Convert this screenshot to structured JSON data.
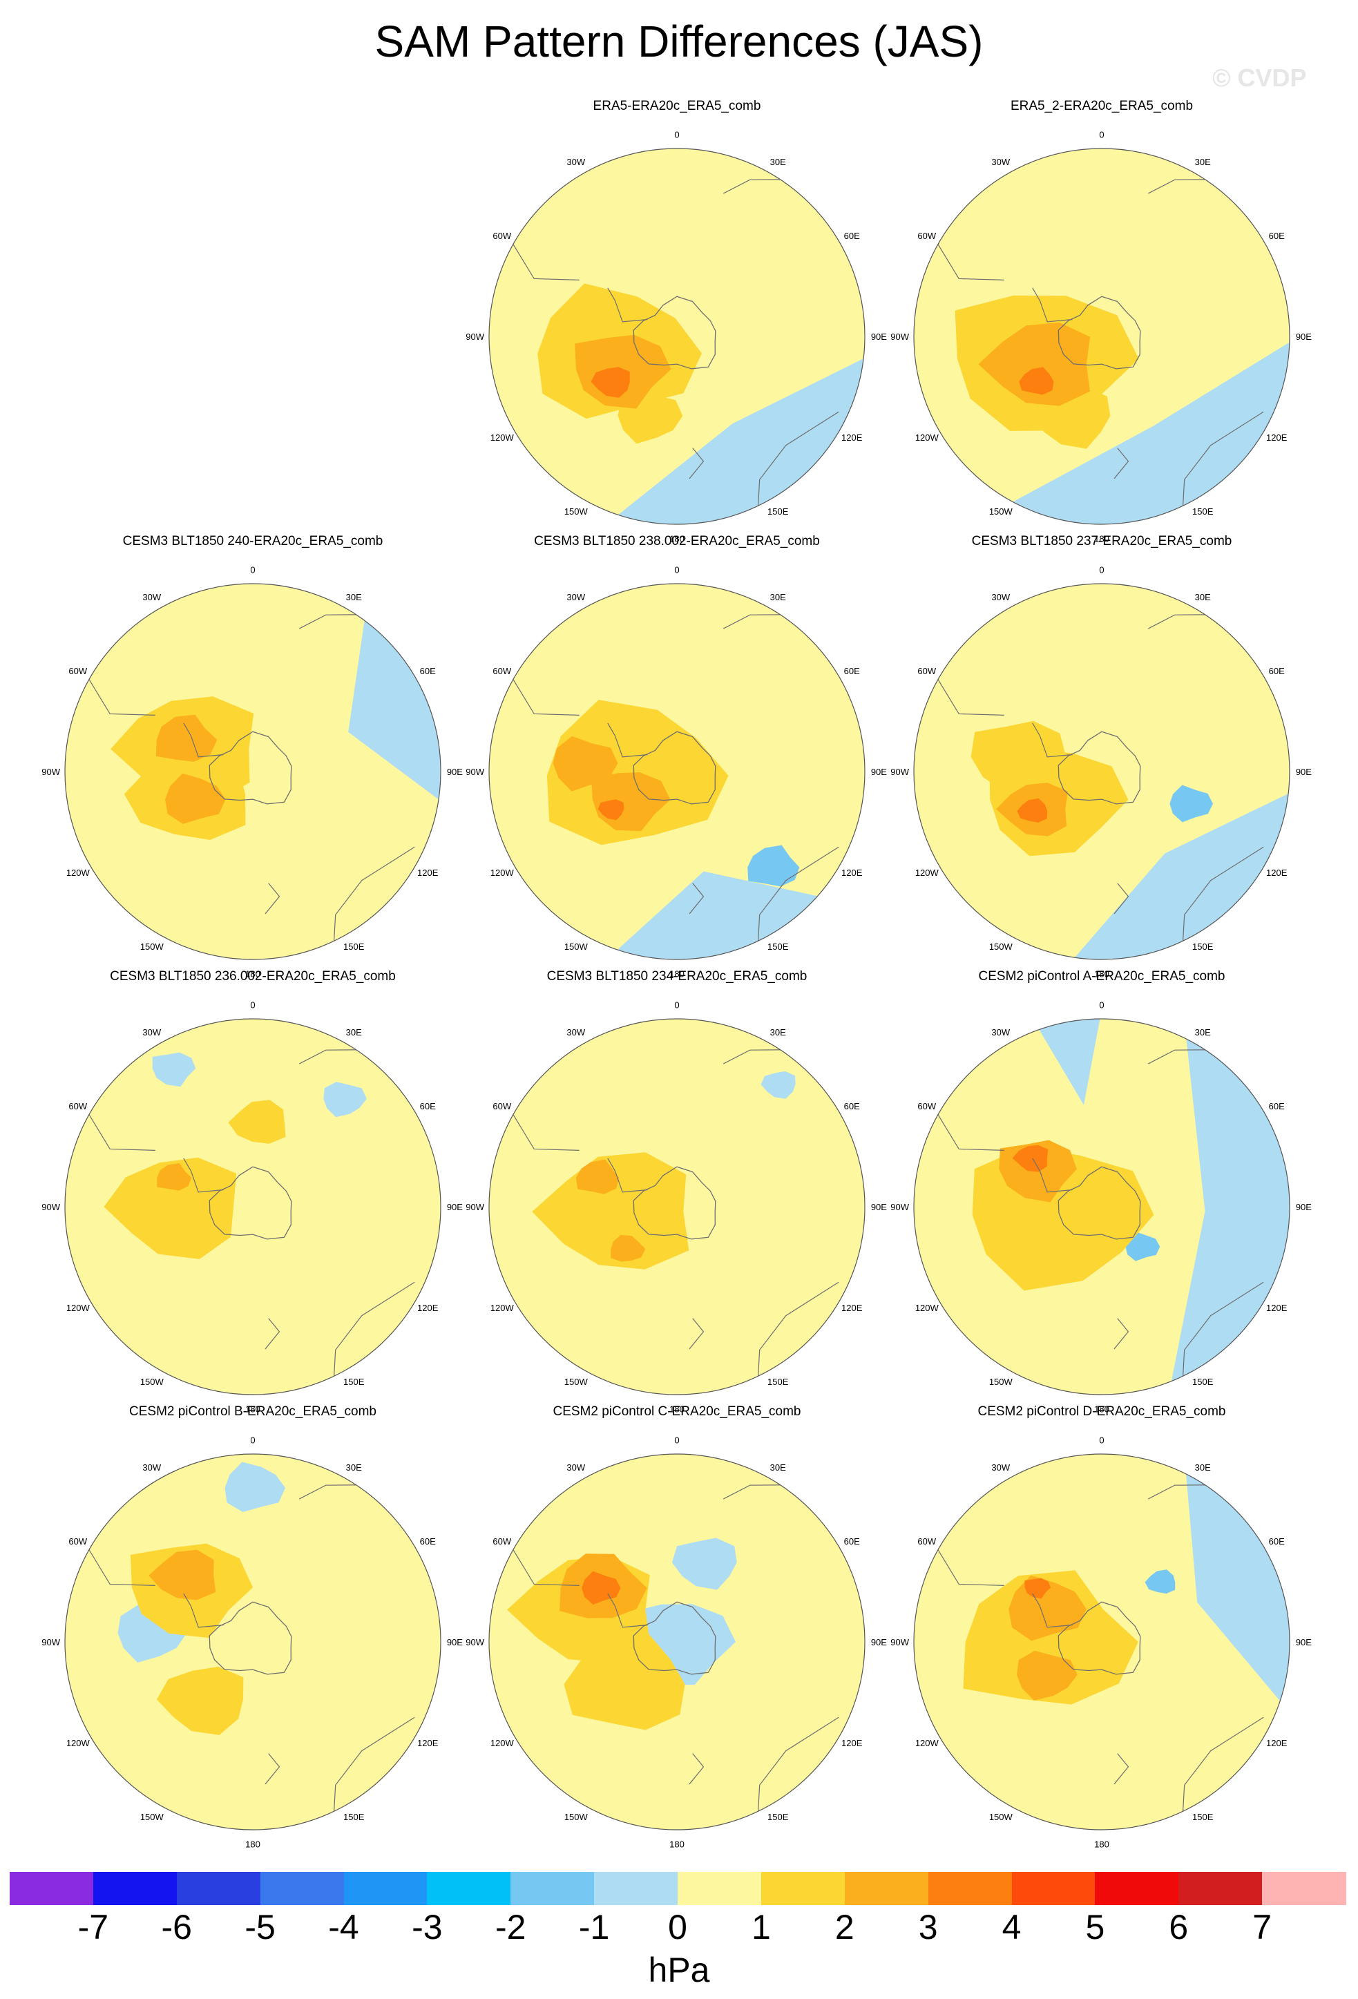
{
  "title": "SAM Pattern Differences (JAS)",
  "watermark": "© CVDP",
  "colors": {
    "ocean_neg1": "#aedcf3",
    "neg2": "#76c8f2",
    "neg3": "#5ab0ee",
    "zero1": "#fdf7a0",
    "pos1": "#fcd733",
    "pos2": "#fcaf1c",
    "pos3": "#fc7f10",
    "coast": "#6e6e6e"
  },
  "longitude_labels": [
    "0",
    "30E",
    "60E",
    "90E",
    "120E",
    "150E",
    "180",
    "150W",
    "120W",
    "90W",
    "60W",
    "30W"
  ],
  "panels": [
    {
      "title": "ERA5-ERA20c_ERA5_comb",
      "features": [
        {
          "level": -1,
          "shape": "wedge",
          "from": 95,
          "to": 200
        },
        {
          "level": 1,
          "shape": "blob",
          "lon": 255,
          "lat": 0.35,
          "r": 0.38
        },
        {
          "level": 1,
          "shape": "blob",
          "lon": 200,
          "lat": 0.45,
          "r": 0.15
        },
        {
          "level": 2,
          "shape": "blob",
          "lon": 240,
          "lat": 0.35,
          "r": 0.22
        },
        {
          "level": 3,
          "shape": "blob",
          "lon": 235,
          "lat": 0.42,
          "r": 0.09
        }
      ]
    },
    {
      "title": "ERA5_2-ERA20c_ERA5_comb",
      "features": [
        {
          "level": -1,
          "shape": "wedge",
          "from": 90,
          "to": 210
        },
        {
          "level": 1,
          "shape": "blob",
          "lon": 250,
          "lat": 0.35,
          "r": 0.42
        },
        {
          "level": 1,
          "shape": "blob",
          "lon": 200,
          "lat": 0.45,
          "r": 0.18
        },
        {
          "level": 2,
          "shape": "blob",
          "lon": 245,
          "lat": 0.35,
          "r": 0.25
        },
        {
          "level": 3,
          "shape": "blob",
          "lon": 235,
          "lat": 0.42,
          "r": 0.08
        }
      ]
    },
    {
      "title": "CESM3 BLT1850 240-ERA20c_ERA5_comb",
      "features": [
        {
          "level": -1,
          "shape": "wedge",
          "from": 35,
          "to": 100
        },
        {
          "level": 1,
          "shape": "blob",
          "lon": 290,
          "lat": 0.35,
          "r": 0.32
        },
        {
          "level": 1,
          "shape": "blob",
          "lon": 250,
          "lat": 0.35,
          "r": 0.28
        },
        {
          "level": 2,
          "shape": "blob",
          "lon": 295,
          "lat": 0.4,
          "r": 0.14
        },
        {
          "level": 2,
          "shape": "blob",
          "lon": 245,
          "lat": 0.35,
          "r": 0.14
        }
      ]
    },
    {
      "title": "CESM3 BLT1850 238.002-ERA20c_ERA5_comb",
      "features": [
        {
          "level": -1,
          "shape": "wedge",
          "from": 130,
          "to": 200
        },
        {
          "level": -2,
          "shape": "blob",
          "lon": 135,
          "lat": 0.72,
          "r": 0.12
        },
        {
          "level": 1,
          "shape": "blob",
          "lon": 265,
          "lat": 0.25,
          "r": 0.42
        },
        {
          "level": 2,
          "shape": "blob",
          "lon": 275,
          "lat": 0.5,
          "r": 0.15
        },
        {
          "level": 2,
          "shape": "blob",
          "lon": 240,
          "lat": 0.3,
          "r": 0.18
        },
        {
          "level": 3,
          "shape": "blob",
          "lon": 240,
          "lat": 0.4,
          "r": 0.06
        }
      ]
    },
    {
      "title": "CESM3 BLT1850 237-ERA20c_ERA5_comb",
      "features": [
        {
          "level": -1,
          "shape": "wedge",
          "from": 95,
          "to": 190
        },
        {
          "level": -2,
          "shape": "blob",
          "lon": 110,
          "lat": 0.5,
          "r": 0.1
        },
        {
          "level": 1,
          "shape": "blob",
          "lon": 240,
          "lat": 0.3,
          "r": 0.32
        },
        {
          "level": 1,
          "shape": "blob",
          "lon": 280,
          "lat": 0.45,
          "r": 0.22
        },
        {
          "level": 2,
          "shape": "blob",
          "lon": 240,
          "lat": 0.4,
          "r": 0.16
        },
        {
          "level": 3,
          "shape": "blob",
          "lon": 240,
          "lat": 0.42,
          "r": 0.07
        }
      ]
    },
    {
      "title": "CESM3 BLT1850 236.002-ERA20c_ERA5_comb",
      "features": [
        {
          "level": -1,
          "shape": "blob",
          "lon": 40,
          "lat": 0.75,
          "r": 0.1
        },
        {
          "level": -1,
          "shape": "blob",
          "lon": 330,
          "lat": 0.85,
          "r": 0.1
        },
        {
          "level": 1,
          "shape": "blob",
          "lon": 270,
          "lat": 0.4,
          "r": 0.3
        },
        {
          "level": 1,
          "shape": "blob",
          "lon": 5,
          "lat": 0.45,
          "r": 0.13
        },
        {
          "level": 2,
          "shape": "blob",
          "lon": 290,
          "lat": 0.45,
          "r": 0.08
        }
      ]
    },
    {
      "title": "CESM3 BLT1850 234-ERA20c_ERA5_comb",
      "features": [
        {
          "level": -1,
          "shape": "blob",
          "lon": 40,
          "lat": 0.85,
          "r": 0.08
        },
        {
          "level": 1,
          "shape": "blob",
          "lon": 265,
          "lat": 0.3,
          "r": 0.35
        },
        {
          "level": 2,
          "shape": "blob",
          "lon": 290,
          "lat": 0.45,
          "r": 0.1
        },
        {
          "level": 2,
          "shape": "blob",
          "lon": 230,
          "lat": 0.35,
          "r": 0.08
        }
      ]
    },
    {
      "title": "CESM2 piControl A-ERA20c_ERA5_comb",
      "features": [
        {
          "level": -1,
          "shape": "wedge",
          "from": 25,
          "to": 160
        },
        {
          "level": -1,
          "shape": "wedge",
          "from": 340,
          "to": 360
        },
        {
          "level": -2,
          "shape": "blob",
          "lon": 135,
          "lat": 0.3,
          "r": 0.08
        },
        {
          "level": 1,
          "shape": "blob",
          "lon": 260,
          "lat": 0.25,
          "r": 0.42
        },
        {
          "level": 2,
          "shape": "blob",
          "lon": 300,
          "lat": 0.4,
          "r": 0.18
        },
        {
          "level": 3,
          "shape": "blob",
          "lon": 305,
          "lat": 0.45,
          "r": 0.08
        }
      ]
    },
    {
      "title": "CESM2 piControl B-ERA20c_ERA5_comb",
      "features": [
        {
          "level": -1,
          "shape": "blob",
          "lon": 0,
          "lat": 0.82,
          "r": 0.14
        },
        {
          "level": -1,
          "shape": "blob",
          "lon": 275,
          "lat": 0.55,
          "r": 0.16
        },
        {
          "level": 1,
          "shape": "blob",
          "lon": 310,
          "lat": 0.45,
          "r": 0.28
        },
        {
          "level": 1,
          "shape": "blob",
          "lon": 220,
          "lat": 0.4,
          "r": 0.2
        },
        {
          "level": 2,
          "shape": "blob",
          "lon": 315,
          "lat": 0.5,
          "r": 0.15
        }
      ]
    },
    {
      "title": "CESM2 piControl C-ERA20c_ERA5_comb",
      "features": [
        {
          "level": -1,
          "shape": "blob",
          "lon": 0,
          "lat": 0.0,
          "r": 0.25
        },
        {
          "level": -1,
          "shape": "blob",
          "lon": 20,
          "lat": 0.45,
          "r": 0.15
        },
        {
          "level": 1,
          "shape": "blob",
          "lon": 290,
          "lat": 0.5,
          "r": 0.32
        },
        {
          "level": 1,
          "shape": "blob",
          "lon": 230,
          "lat": 0.35,
          "r": 0.28
        },
        {
          "level": 2,
          "shape": "blob",
          "lon": 305,
          "lat": 0.5,
          "r": 0.2
        },
        {
          "level": 3,
          "shape": "blob",
          "lon": 305,
          "lat": 0.5,
          "r": 0.09
        }
      ]
    },
    {
      "title": "CESM2 piControl D-ERA20c_ERA5_comb",
      "features": [
        {
          "level": -1,
          "shape": "wedge",
          "from": 25,
          "to": 110
        },
        {
          "level": -2,
          "shape": "blob",
          "lon": 45,
          "lat": 0.45,
          "r": 0.07
        },
        {
          "level": 1,
          "shape": "blob",
          "lon": 270,
          "lat": 0.3,
          "r": 0.4
        },
        {
          "level": 2,
          "shape": "blob",
          "lon": 300,
          "lat": 0.35,
          "r": 0.18
        },
        {
          "level": 2,
          "shape": "blob",
          "lon": 240,
          "lat": 0.35,
          "r": 0.14
        },
        {
          "level": 3,
          "shape": "blob",
          "lon": 310,
          "lat": 0.45,
          "r": 0.06
        }
      ]
    }
  ],
  "colorbar": {
    "units": "hPa",
    "labels": [
      "-7",
      "-6",
      "-5",
      "-4",
      "-3",
      "-2",
      "-1",
      "0",
      "1",
      "2",
      "3",
      "4",
      "5",
      "6",
      "7"
    ],
    "colors": [
      "#8a2be2",
      "#1414f0",
      "#2a3fe0",
      "#3a78ee",
      "#1e96f5",
      "#00c0f8",
      "#76c8f2",
      "#aedcf3",
      "#fdf7a0",
      "#fcd733",
      "#fcaf1c",
      "#fc7f10",
      "#fc4b0a",
      "#f00a0a",
      "#d21e1e",
      "#ffb4b4"
    ]
  }
}
